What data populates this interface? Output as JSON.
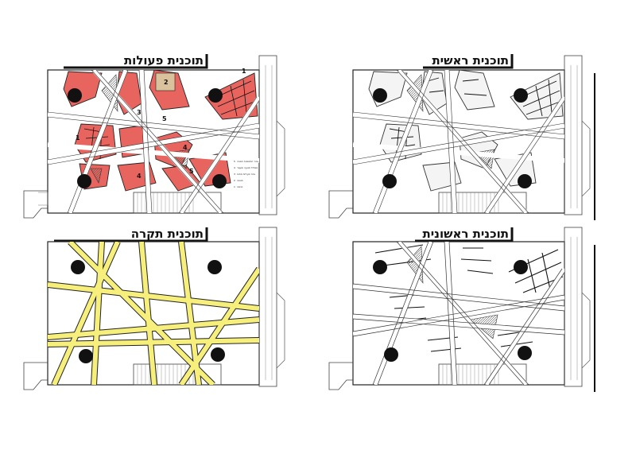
{
  "panels": {
    "top_left": {
      "title": "תוכנית פעולות"
    },
    "top_right": {
      "title": "תוכנית ראשית"
    },
    "bottom_left": {
      "title": "תוכנית תקרה"
    },
    "bottom_right": {
      "title": "תוכנית ראשונית"
    }
  },
  "numbers": {
    "n1_top": "1",
    "n1_left": "1",
    "n2": "2",
    "n3": "3",
    "n4_center": "4",
    "n4_right": "4",
    "n5_center": "5",
    "n5_right": "5"
  },
  "legend": [
    {
      "num": "5",
      "text": "אזור התכנסות וישיבה"
    },
    {
      "num": "4",
      "text": "מסלול תנועה ומעבר"
    },
    {
      "num": "3",
      "text": "אזור פעילות פתוח"
    },
    {
      "num": "2",
      "text": "תצוגה"
    },
    {
      "num": "1",
      "text": "כניסה"
    }
  ],
  "colors": {
    "activity_fill": "#e8655f",
    "ceiling_fill": "#f6ef7b",
    "path_stroke": "#222222",
    "column": "#111111"
  }
}
